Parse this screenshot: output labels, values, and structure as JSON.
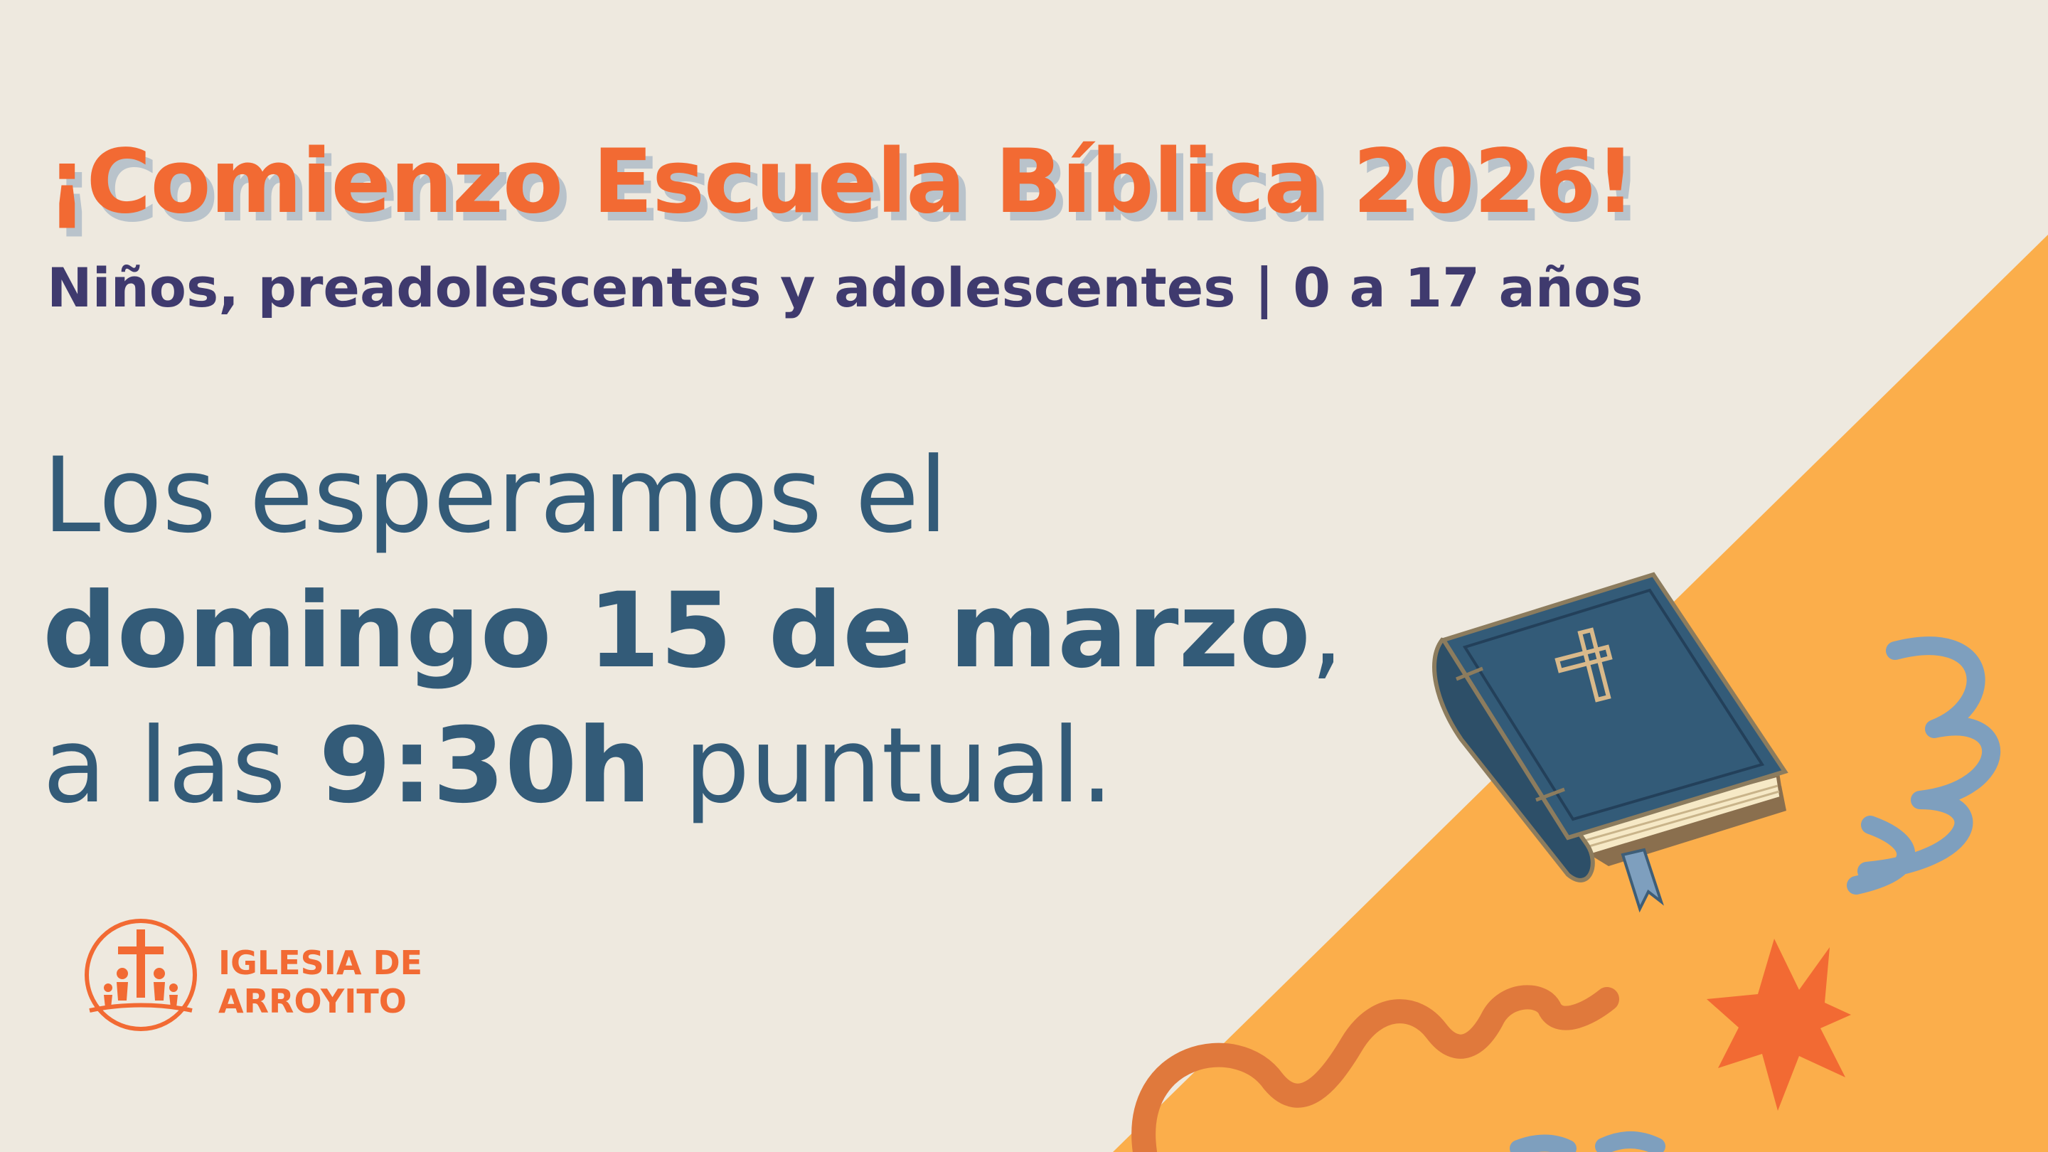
{
  "heading": {
    "title": "¡Comienzo Escuela Bíblica 2026!",
    "subtitle": "Niños, preadolescentes y adolescentes | 0 a 17 años"
  },
  "message": {
    "line1": "Los esperamos el",
    "line2_bold": "domingo 15 de marzo",
    "line2_rest": ",",
    "line3_pre": "a las ",
    "line3_bold": "9:30h",
    "line3_post": " puntual."
  },
  "logo": {
    "line1": "IGLESIA DE",
    "line2": "ARROYITO"
  },
  "colors": {
    "background": "#EEE9DF",
    "orange_panel": "#FBAE4B",
    "title": "#F26A33",
    "subtitle": "#3F3A6E",
    "body": "#335B78",
    "bible_cover": "#335B78",
    "swirl_blue": "#7E9FBE",
    "squiggle": "#E0793C",
    "star": "#F26A33"
  },
  "icons": [
    "bible-icon",
    "cross-icon",
    "swirl-icon",
    "squiggle-icon",
    "star-icon",
    "church-logo-icon"
  ]
}
